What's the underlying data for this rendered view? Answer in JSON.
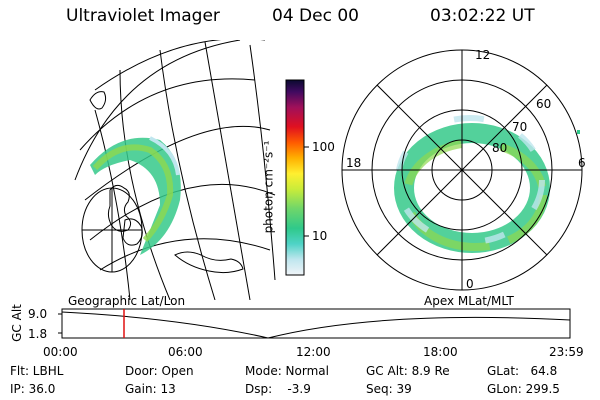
{
  "header": {
    "title": "Ultraviolet Imager",
    "date": "04 Dec 00",
    "time": "03:02:22 UT"
  },
  "colorbar": {
    "label": "photon cm⁻²s⁻¹",
    "ticks": [
      "100",
      "10"
    ]
  },
  "left_panel": {
    "caption": "Geographic Lat/Lon"
  },
  "right_panel": {
    "caption": "Apex MLat/MLT",
    "mlt_labels": {
      "top": "12",
      "left": "18",
      "right": "6",
      "bottom": "0"
    },
    "lat_labels": [
      "60",
      "70",
      "80"
    ]
  },
  "orbit": {
    "axis_label": "GC Alt",
    "y_ticks": [
      "9.0",
      "1.8"
    ],
    "x_ticks": [
      "00:00",
      "06:00",
      "12:00",
      "18:00",
      "23:59"
    ],
    "marker_time": "03:02"
  },
  "footer": {
    "flt": "Flt: LBHL",
    "ip": "IP: 36.0",
    "door": "Door: Open",
    "gain": "Gain: 13",
    "mode": "Mode: Normal",
    "dsp": "Dsp:    -3.9",
    "gc_alt": "GC Alt: 8.9 Re",
    "seq": "Seq: 39",
    "glat": "GLat:   64.8",
    "glon": "GLon: 299.5"
  }
}
